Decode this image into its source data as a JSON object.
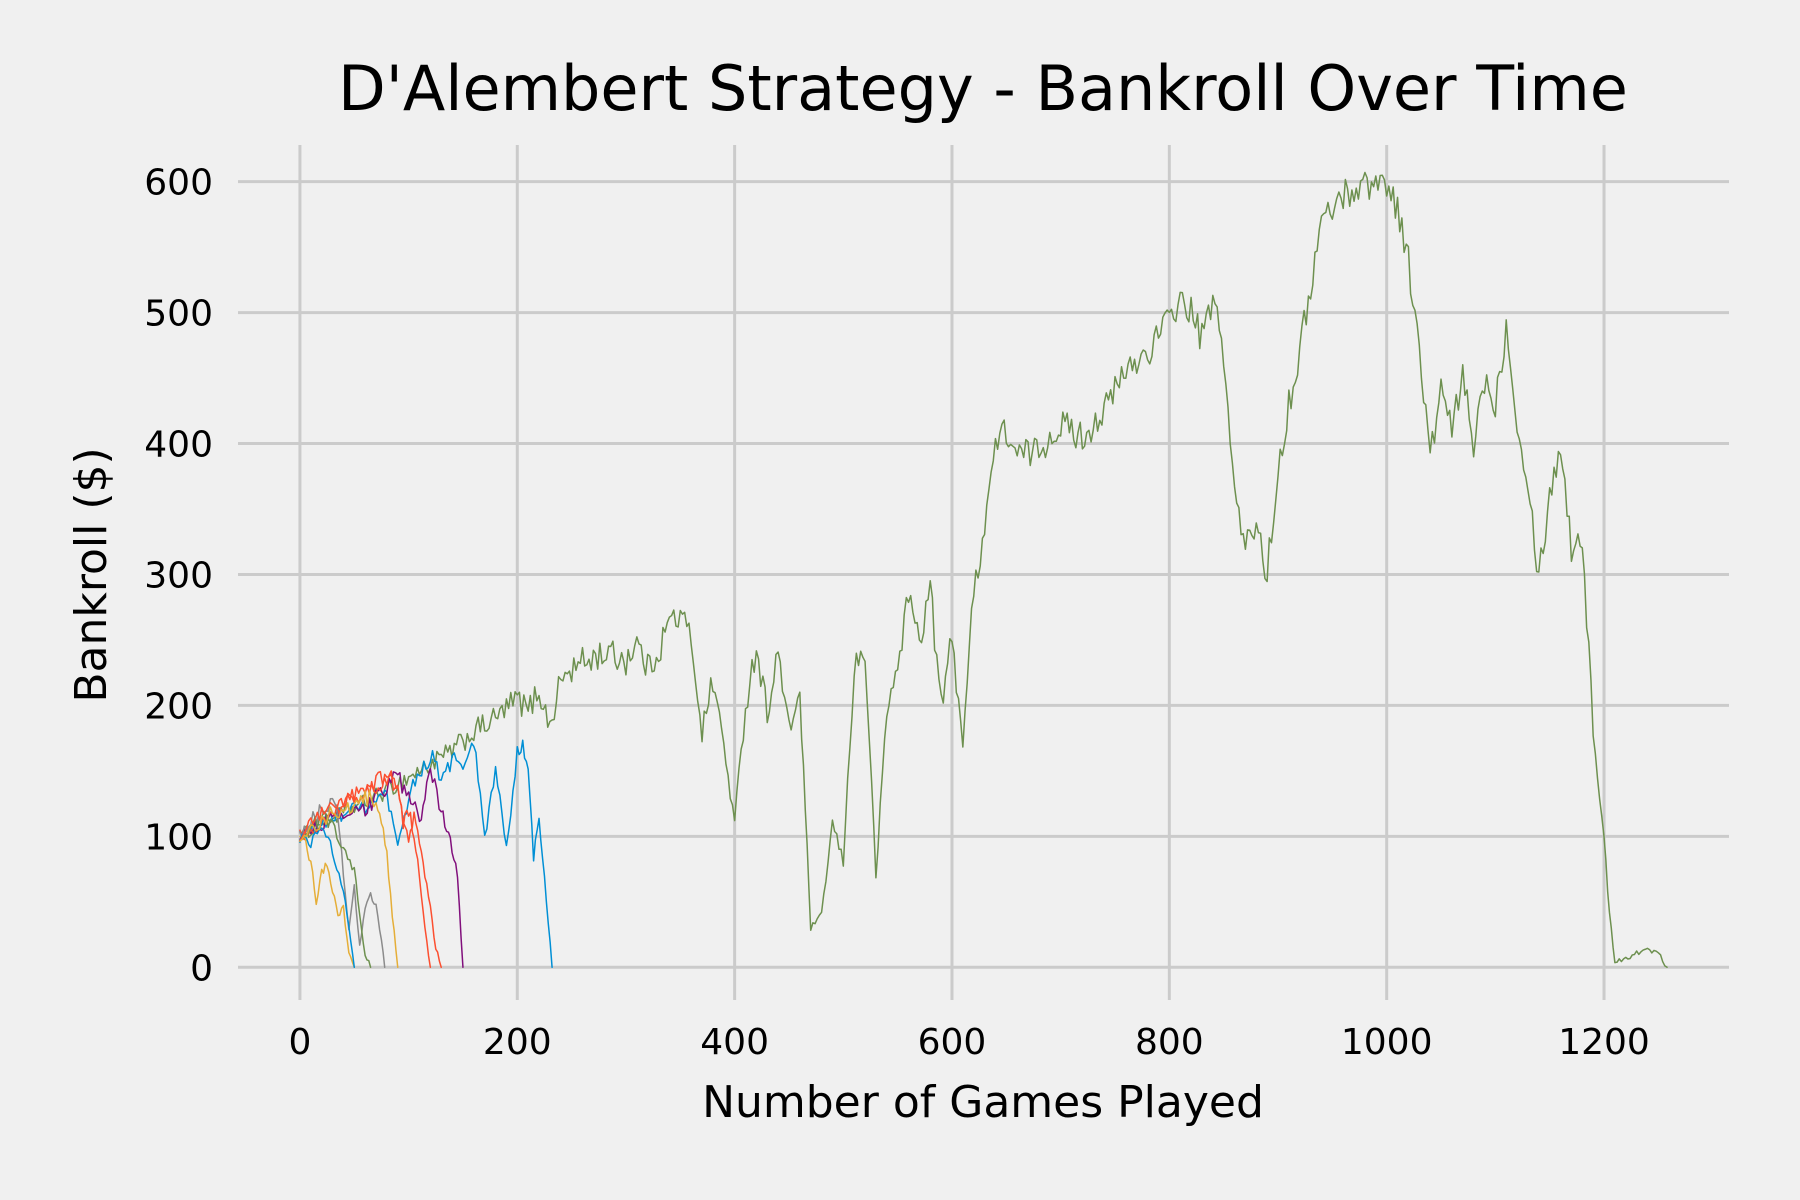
{
  "chart_data": {
    "type": "line",
    "title": "D'Alembert Strategy - Bankroll Over Time",
    "xlabel": "Number of Games Played",
    "ylabel": "Bankroll ($)",
    "xlim": [
      -57,
      1315
    ],
    "ylim": [
      -25,
      628
    ],
    "xticks": [
      0,
      200,
      400,
      600,
      800,
      1000,
      1200
    ],
    "yticks": [
      0,
      100,
      200,
      300,
      400,
      500,
      600
    ],
    "xtick_labels": [
      "0",
      "200",
      "400",
      "600",
      "800",
      "1000",
      "1200"
    ],
    "ytick_labels": [
      "0",
      "100",
      "200",
      "300",
      "400",
      "500",
      "600"
    ],
    "grid": true,
    "legend": "none",
    "series": [
      {
        "color": "#6d904f",
        "points": [
          [
            0,
            100
          ],
          [
            20,
            110
          ],
          [
            40,
            118
          ],
          [
            60,
            126
          ],
          [
            80,
            135
          ],
          [
            100,
            145
          ],
          [
            120,
            155
          ],
          [
            140,
            165
          ],
          [
            160,
            180
          ],
          [
            180,
            190
          ],
          [
            200,
            205
          ],
          [
            210,
            196
          ],
          [
            220,
            212
          ],
          [
            230,
            183
          ],
          [
            240,
            220
          ],
          [
            260,
            233
          ],
          [
            280,
            240
          ],
          [
            300,
            235
          ],
          [
            310,
            248
          ],
          [
            320,
            228
          ],
          [
            330,
            242
          ],
          [
            340,
            265
          ],
          [
            350,
            268
          ],
          [
            360,
            252
          ],
          [
            370,
            180
          ],
          [
            380,
            220
          ],
          [
            390,
            170
          ],
          [
            400,
            110
          ],
          [
            410,
            200
          ],
          [
            420,
            245
          ],
          [
            430,
            195
          ],
          [
            440,
            240
          ],
          [
            450,
            180
          ],
          [
            460,
            210
          ],
          [
            465,
            120
          ],
          [
            470,
            30
          ],
          [
            480,
            40
          ],
          [
            490,
            110
          ],
          [
            500,
            80
          ],
          [
            510,
            230
          ],
          [
            520,
            240
          ],
          [
            530,
            70
          ],
          [
            540,
            195
          ],
          [
            550,
            230
          ],
          [
            560,
            285
          ],
          [
            570,
            250
          ],
          [
            580,
            290
          ],
          [
            590,
            200
          ],
          [
            600,
            250
          ],
          [
            610,
            175
          ],
          [
            620,
            285
          ],
          [
            630,
            340
          ],
          [
            640,
            400
          ],
          [
            650,
            410
          ],
          [
            660,
            390
          ],
          [
            680,
            395
          ],
          [
            700,
            415
          ],
          [
            720,
            405
          ],
          [
            740,
            425
          ],
          [
            760,
            455
          ],
          [
            780,
            470
          ],
          [
            800,
            495
          ],
          [
            810,
            510
          ],
          [
            820,
            500
          ],
          [
            830,
            480
          ],
          [
            840,
            510
          ],
          [
            850,
            470
          ],
          [
            860,
            360
          ],
          [
            870,
            320
          ],
          [
            880,
            340
          ],
          [
            890,
            300
          ],
          [
            900,
            380
          ],
          [
            910,
            430
          ],
          [
            920,
            470
          ],
          [
            930,
            520
          ],
          [
            940,
            570
          ],
          [
            960,
            590
          ],
          [
            980,
            598
          ],
          [
            1000,
            600
          ],
          [
            1010,
            580
          ],
          [
            1020,
            540
          ],
          [
            1030,
            470
          ],
          [
            1040,
            390
          ],
          [
            1050,
            440
          ],
          [
            1060,
            410
          ],
          [
            1070,
            450
          ],
          [
            1080,
            400
          ],
          [
            1090,
            450
          ],
          [
            1100,
            430
          ],
          [
            1110,
            490
          ],
          [
            1120,
            420
          ],
          [
            1130,
            370
          ],
          [
            1140,
            300
          ],
          [
            1150,
            360
          ],
          [
            1160,
            400
          ],
          [
            1170,
            320
          ],
          [
            1180,
            330
          ],
          [
            1190,
            180
          ],
          [
            1200,
            100
          ],
          [
            1205,
            40
          ],
          [
            1210,
            5
          ],
          [
            1220,
            7
          ],
          [
            1230,
            11
          ],
          [
            1240,
            13
          ],
          [
            1250,
            12
          ],
          [
            1258,
            0
          ]
        ]
      },
      {
        "color": "#008fd5",
        "points": [
          [
            0,
            100
          ],
          [
            20,
            110
          ],
          [
            40,
            118
          ],
          [
            60,
            122
          ],
          [
            80,
            130
          ],
          [
            90,
            90
          ],
          [
            100,
            130
          ],
          [
            110,
            150
          ],
          [
            120,
            162
          ],
          [
            130,
            145
          ],
          [
            140,
            160
          ],
          [
            150,
            150
          ],
          [
            160,
            172
          ],
          [
            170,
            100
          ],
          [
            180,
            150
          ],
          [
            190,
            90
          ],
          [
            200,
            165
          ],
          [
            205,
            170
          ],
          [
            210,
            145
          ],
          [
            215,
            85
          ],
          [
            220,
            110
          ],
          [
            225,
            70
          ],
          [
            232,
            0
          ]
        ]
      },
      {
        "color": "#810f7c",
        "points": [
          [
            0,
            100
          ],
          [
            20,
            110
          ],
          [
            40,
            115
          ],
          [
            60,
            120
          ],
          [
            70,
            130
          ],
          [
            80,
            138
          ],
          [
            90,
            145
          ],
          [
            100,
            130
          ],
          [
            110,
            115
          ],
          [
            115,
            125
          ],
          [
            120,
            155
          ],
          [
            130,
            120
          ],
          [
            135,
            105
          ],
          [
            140,
            90
          ],
          [
            145,
            70
          ],
          [
            150,
            0
          ]
        ]
      },
      {
        "color": "#fc4f30",
        "points": [
          [
            0,
            100
          ],
          [
            10,
            105
          ],
          [
            20,
            112
          ],
          [
            30,
            118
          ],
          [
            40,
            125
          ],
          [
            50,
            130
          ],
          [
            60,
            135
          ],
          [
            70,
            138
          ],
          [
            80,
            142
          ],
          [
            85,
            145
          ],
          [
            90,
            135
          ],
          [
            95,
            115
          ],
          [
            100,
            100
          ],
          [
            105,
            115
          ],
          [
            110,
            95
          ],
          [
            115,
            70
          ],
          [
            120,
            45
          ],
          [
            125,
            15
          ],
          [
            130,
            0
          ]
        ]
      },
      {
        "color": "#e5ae38",
        "points": [
          [
            0,
            100
          ],
          [
            5,
            97
          ],
          [
            10,
            80
          ],
          [
            15,
            50
          ],
          [
            20,
            72
          ],
          [
            25,
            80
          ],
          [
            30,
            60
          ],
          [
            35,
            40
          ],
          [
            40,
            45
          ],
          [
            45,
            10
          ],
          [
            50,
            0
          ]
        ]
      },
      {
        "color": "#8b8b8b",
        "points": [
          [
            0,
            100
          ],
          [
            10,
            112
          ],
          [
            20,
            120
          ],
          [
            30,
            125
          ],
          [
            35,
            118
          ],
          [
            40,
            70
          ],
          [
            45,
            30
          ],
          [
            50,
            60
          ],
          [
            55,
            15
          ],
          [
            60,
            45
          ],
          [
            65,
            55
          ],
          [
            70,
            48
          ],
          [
            75,
            20
          ],
          [
            78,
            0
          ]
        ]
      },
      {
        "color": "#6d904f",
        "points": [
          [
            0,
            100
          ],
          [
            10,
            108
          ],
          [
            20,
            115
          ],
          [
            30,
            110
          ],
          [
            40,
            90
          ],
          [
            50,
            75
          ],
          [
            55,
            40
          ],
          [
            60,
            10
          ],
          [
            65,
            0
          ]
        ]
      },
      {
        "color": "#008fd5",
        "points": [
          [
            0,
            100
          ],
          [
            10,
            95
          ],
          [
            20,
            105
          ],
          [
            30,
            90
          ],
          [
            40,
            60
          ],
          [
            45,
            30
          ],
          [
            50,
            0
          ]
        ]
      },
      {
        "color": "#fc4f30",
        "points": [
          [
            0,
            100
          ],
          [
            10,
            110
          ],
          [
            20,
            118
          ],
          [
            30,
            122
          ],
          [
            40,
            128
          ],
          [
            50,
            132
          ],
          [
            60,
            138
          ],
          [
            70,
            142
          ],
          [
            80,
            145
          ],
          [
            90,
            140
          ],
          [
            95,
            110
          ],
          [
            100,
            120
          ],
          [
            105,
            100
          ],
          [
            110,
            70
          ],
          [
            115,
            30
          ],
          [
            120,
            0
          ]
        ]
      },
      {
        "color": "#e5ae38",
        "points": [
          [
            0,
            100
          ],
          [
            10,
            106
          ],
          [
            20,
            112
          ],
          [
            30,
            118
          ],
          [
            40,
            120
          ],
          [
            50,
            125
          ],
          [
            60,
            130
          ],
          [
            70,
            128
          ],
          [
            75,
            110
          ],
          [
            80,
            85
          ],
          [
            85,
            40
          ],
          [
            90,
            0
          ]
        ]
      }
    ]
  }
}
